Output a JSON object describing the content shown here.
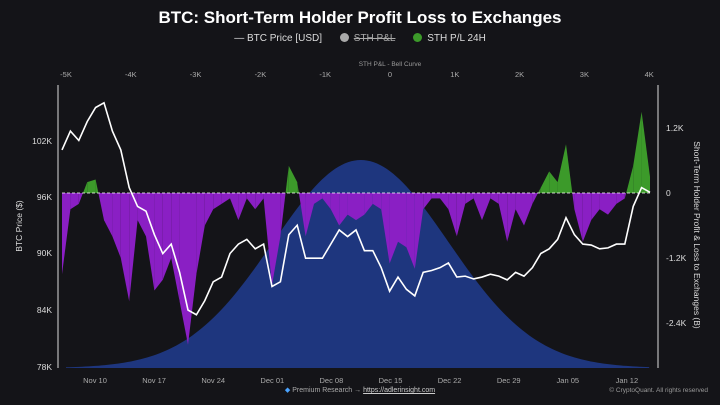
{
  "chart_data": {
    "type": "line",
    "title": "BTC: Short-Term Holder Profit Loss to Exchanges",
    "legend": [
      {
        "name": "BTC Price [USD]",
        "color": "#ffffff",
        "hidden": false
      },
      {
        "name": "STH P&L",
        "color": "#aaaaaa",
        "hidden": true
      },
      {
        "name": "STH P/L 24H",
        "color": "#3c9a2a",
        "hidden": false
      }
    ],
    "legend_placement": "top",
    "top_axis": {
      "label": "STH P&L - Bell Curve",
      "ticks": [
        "-5K",
        "-4K",
        "-3K",
        "-2K",
        "-1K",
        "0",
        "1K",
        "2K",
        "3K",
        "4K"
      ],
      "range": [
        -5000,
        4000
      ]
    },
    "ylabel": "BTC Price ($)",
    "y_ticks": [
      "102K",
      "96K",
      "90K",
      "84K",
      "78K"
    ],
    "ylim": [
      78000,
      108000
    ],
    "y2label": "Short-Term Holder Profit & Loss to Exchanges (B)",
    "y2_ticks": [
      "1.2K",
      "0",
      "-1.2K",
      "-2.4K"
    ],
    "y2lim": [
      -3200,
      1700
    ],
    "x_ticks": [
      "Nov 10",
      "Nov 17",
      "Nov 24",
      "Dec 01",
      "Dec 08",
      "Dec 15",
      "Dec 22",
      "Dec 29",
      "Jan 05",
      "Jan 12"
    ],
    "x_range": [
      "Nov 06",
      "Jan 15"
    ],
    "grid": false,
    "series": [
      {
        "name": "BTC Price [USD]",
        "unit": "K USD",
        "values": [
          101,
          103,
          102,
          104,
          105.5,
          106,
          103,
          101,
          97,
          95,
          94.5,
          92,
          90,
          91,
          88,
          84,
          83.5,
          85,
          87,
          87.5,
          90,
          91,
          91.5,
          90.5,
          91,
          86.5,
          87,
          92,
          93,
          89.5,
          89.5,
          89.5,
          91,
          92.5,
          91.8,
          92.5,
          90.3,
          90.3,
          88.5,
          86,
          87.5,
          86.2,
          85.5,
          88,
          88.2,
          88.5,
          89,
          87.5,
          87.6,
          87.3,
          87.5,
          87.8,
          87.6,
          87.2,
          88,
          87.6,
          88.5,
          90,
          90.5,
          91.5,
          93.8,
          92,
          91,
          90.9,
          90.5,
          90.6,
          91,
          91,
          95,
          97,
          96.5
        ]
      },
      {
        "name": "STH P/L 24H",
        "unit": "K",
        "values": [
          -1.5,
          -0.3,
          -0.2,
          0.2,
          0.25,
          -0.5,
          -0.8,
          -1.2,
          -2.0,
          -0.5,
          -0.8,
          -1.8,
          -1.6,
          -1.2,
          -2.0,
          -2.8,
          -1.5,
          -0.6,
          -0.3,
          -0.2,
          -0.1,
          -0.5,
          -0.1,
          -0.3,
          -0.1,
          -1.7,
          -0.8,
          0.5,
          0.2,
          -0.8,
          -0.2,
          -0.1,
          -0.3,
          -0.6,
          -0.4,
          -0.5,
          -0.4,
          -0.2,
          -0.3,
          -1.3,
          -0.9,
          -1.0,
          -1.4,
          -0.3,
          -0.1,
          -0.1,
          -0.3,
          -0.8,
          -0.2,
          -0.1,
          -0.5,
          -0.1,
          -0.2,
          -0.9,
          -0.3,
          -0.6,
          -0.2,
          0.1,
          0.4,
          0.2,
          0.9,
          -0.3,
          -0.9,
          -0.5,
          -0.3,
          -0.4,
          -0.2,
          -0.1,
          0.5,
          1.5,
          0.3
        ]
      }
    ],
    "bell_curve": {
      "mean": -450,
      "sd": 1350,
      "color": "#1f3a8a"
    },
    "colors": {
      "positive": "#3c9a2a",
      "negative": "#8a1fc4",
      "price": "#ffffff"
    }
  },
  "footer": {
    "text": "Premium Research →",
    "link": "https://adlerinsight.com",
    "copyright": "© CryptoQuant. All rights reserved"
  }
}
